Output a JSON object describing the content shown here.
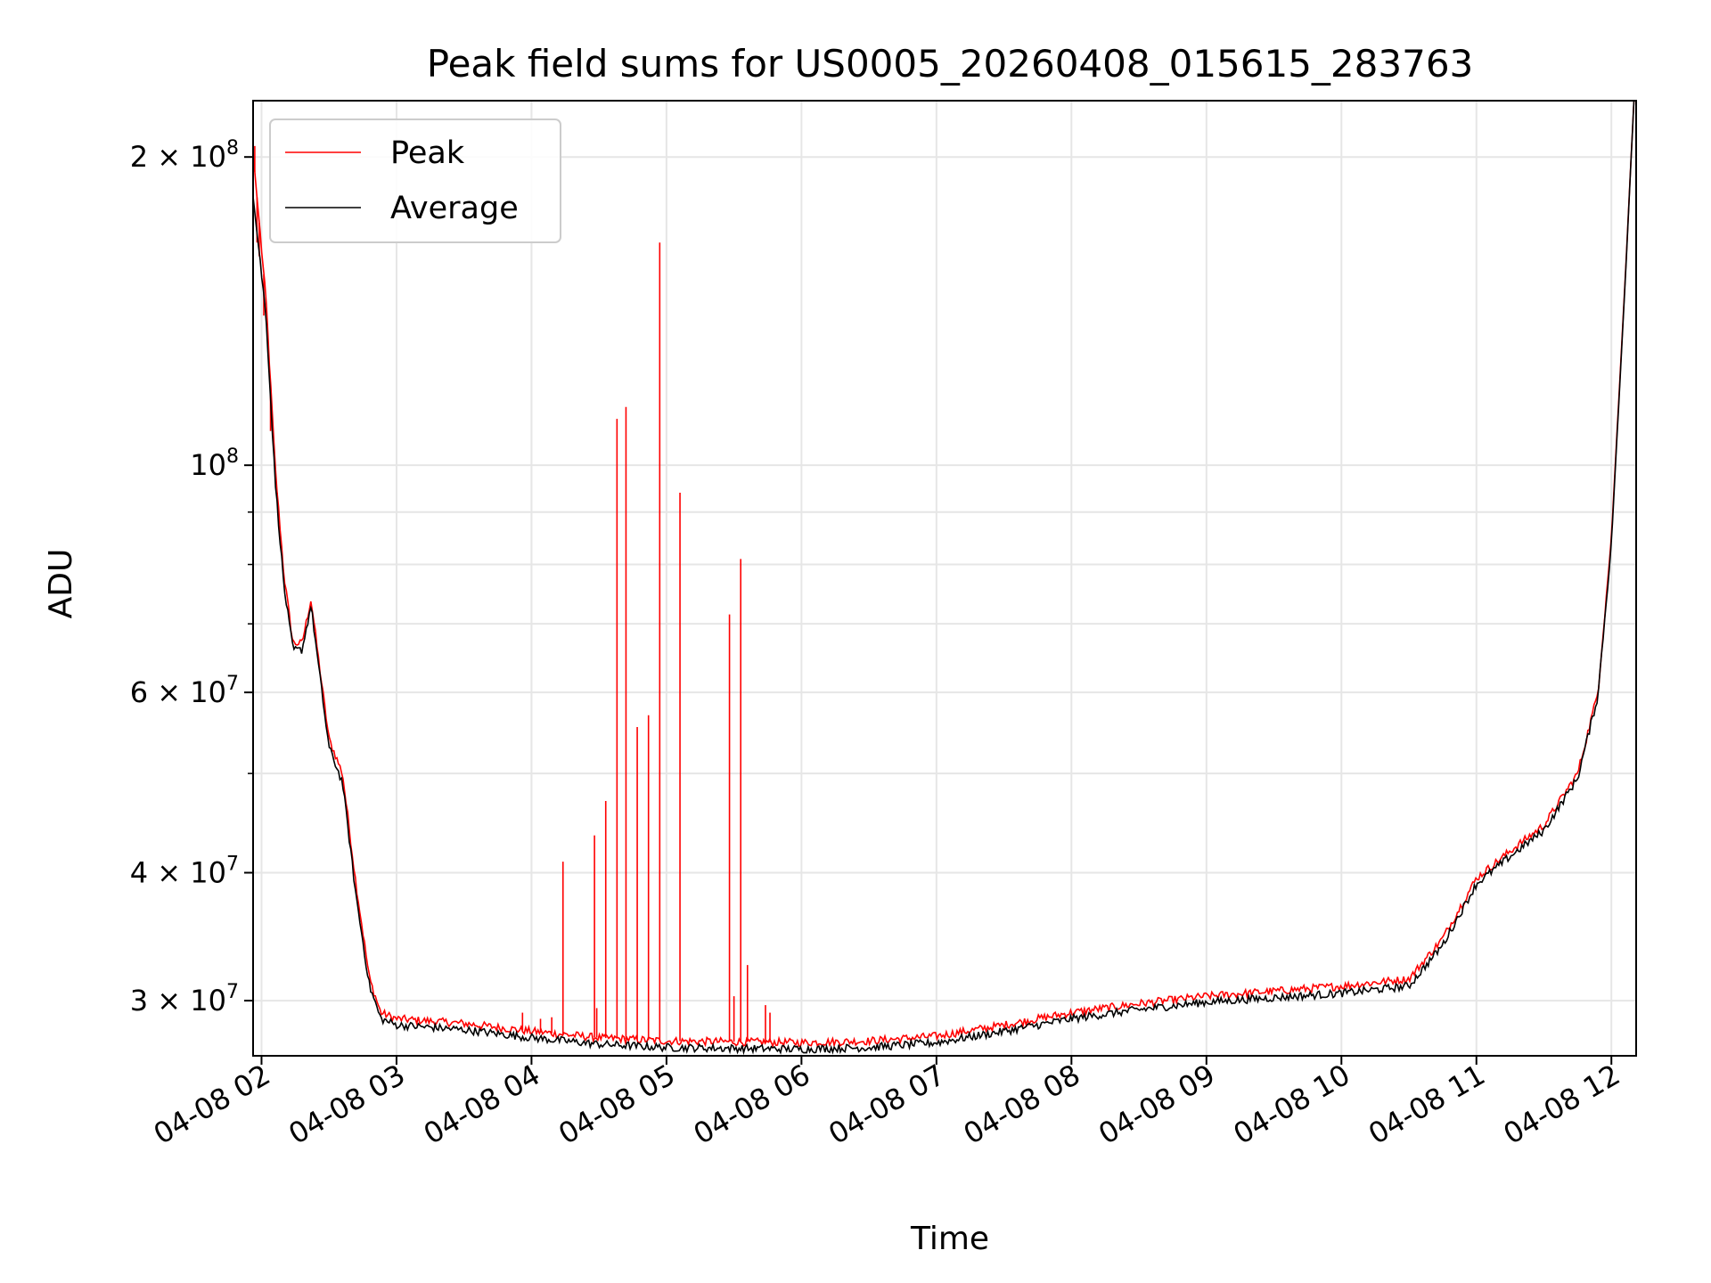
{
  "chart_data": {
    "type": "line",
    "title": "Peak field sums for US0005_20260408_015615_283763",
    "xlabel": "Time",
    "ylabel": "ADU",
    "y_scale": "log",
    "ylim": [
      26500000,
      227000000
    ],
    "xlim": [
      "2026-04-08T01:56:15",
      "2026-04-08T12:11:00"
    ],
    "grid": true,
    "legend_position": "top-left",
    "x_ticks": [
      {
        "value": "2026-04-08T02:00",
        "label": "04-08 02"
      },
      {
        "value": "2026-04-08T03:00",
        "label": "04-08 03"
      },
      {
        "value": "2026-04-08T04:00",
        "label": "04-08 04"
      },
      {
        "value": "2026-04-08T05:00",
        "label": "04-08 05"
      },
      {
        "value": "2026-04-08T06:00",
        "label": "04-08 06"
      },
      {
        "value": "2026-04-08T07:00",
        "label": "04-08 07"
      },
      {
        "value": "2026-04-08T08:00",
        "label": "04-08 08"
      },
      {
        "value": "2026-04-08T09:00",
        "label": "04-08 09"
      },
      {
        "value": "2026-04-08T10:00",
        "label": "04-08 10"
      },
      {
        "value": "2026-04-08T11:00",
        "label": "04-08 11"
      },
      {
        "value": "2026-04-08T12:00",
        "label": "04-08 12"
      }
    ],
    "y_ticks": [
      {
        "value": 200000000,
        "mantissa": "2 × 10",
        "exp": "8"
      },
      {
        "value": 100000000,
        "mantissa": "10",
        "exp": "8"
      },
      {
        "value": 60000000,
        "mantissa": "6 × 10",
        "exp": "7"
      },
      {
        "value": 40000000,
        "mantissa": "4 × 10",
        "exp": "7"
      },
      {
        "value": 30000000,
        "mantissa": "3 × 10",
        "exp": "7"
      }
    ],
    "y_minor_ticks": [
      50000000,
      70000000,
      80000000,
      90000000
    ],
    "series": [
      {
        "name": "Peak",
        "color": "#ff0000",
        "x": [
          "2026-04-08T01:56",
          "2026-04-08T02:02",
          "2026-04-08T02:06",
          "2026-04-08T02:10",
          "2026-04-08T02:14",
          "2026-04-08T02:18",
          "2026-04-08T02:22",
          "2026-04-08T02:26",
          "2026-04-08T02:30",
          "2026-04-08T02:36",
          "2026-04-08T02:42",
          "2026-04-08T02:48",
          "2026-04-08T02:53",
          "2026-04-08T03:00",
          "2026-04-08T03:30",
          "2026-04-08T04:00",
          "2026-04-08T04:30",
          "2026-04-08T05:00",
          "2026-04-08T06:00",
          "2026-04-08T06:30",
          "2026-04-08T07:00",
          "2026-04-08T07:30",
          "2026-04-08T08:00",
          "2026-04-08T08:30",
          "2026-04-08T09:00",
          "2026-04-08T10:00",
          "2026-04-08T10:30",
          "2026-04-08T10:45",
          "2026-04-08T11:00",
          "2026-04-08T11:15",
          "2026-04-08T11:30",
          "2026-04-08T11:45",
          "2026-04-08T11:54",
          "2026-04-08T12:00",
          "2026-04-08T12:06",
          "2026-04-08T12:10"
        ],
        "y": [
          205000000,
          145000000,
          100000000,
          78000000,
          67000000,
          67000000,
          74000000,
          63000000,
          54000000,
          50000000,
          39000000,
          31500000,
          29200000,
          28800000,
          28500000,
          28000000,
          27600000,
          27400000,
          27300000,
          27400000,
          27700000,
          28400000,
          29200000,
          29800000,
          30300000,
          31000000,
          31500000,
          34500000,
          39500000,
          42000000,
          44500000,
          50000000,
          60000000,
          85000000,
          150000000,
          227000000
        ],
        "spikes": [
          {
            "x": "2026-04-08T01:57",
            "y": 205000000
          },
          {
            "x": "2026-04-08T01:58",
            "y": 165000000
          },
          {
            "x": "2026-04-08T01:59",
            "y": 160000000
          },
          {
            "x": "2026-04-08T02:01",
            "y": 140000000
          },
          {
            "x": "2026-04-08T02:04",
            "y": 108000000
          },
          {
            "x": "2026-04-08T02:07",
            "y": 92000000
          },
          {
            "x": "2026-04-08T03:56",
            "y": 29200000
          },
          {
            "x": "2026-04-08T04:04",
            "y": 28800000
          },
          {
            "x": "2026-04-08T04:09",
            "y": 28900000
          },
          {
            "x": "2026-04-08T04:14",
            "y": 41000000
          },
          {
            "x": "2026-04-08T04:28",
            "y": 43500000
          },
          {
            "x": "2026-04-08T04:29",
            "y": 29500000
          },
          {
            "x": "2026-04-08T04:33",
            "y": 47000000
          },
          {
            "x": "2026-04-08T04:38",
            "y": 111000000
          },
          {
            "x": "2026-04-08T04:42",
            "y": 114000000
          },
          {
            "x": "2026-04-08T04:47",
            "y": 55500000
          },
          {
            "x": "2026-04-08T04:52",
            "y": 57000000
          },
          {
            "x": "2026-04-08T04:57",
            "y": 165000000
          },
          {
            "x": "2026-04-08T05:06",
            "y": 94000000
          },
          {
            "x": "2026-04-08T05:28",
            "y": 71500000
          },
          {
            "x": "2026-04-08T05:30",
            "y": 30300000
          },
          {
            "x": "2026-04-08T05:33",
            "y": 81000000
          },
          {
            "x": "2026-04-08T05:36",
            "y": 32500000
          },
          {
            "x": "2026-04-08T05:44",
            "y": 29700000
          },
          {
            "x": "2026-04-08T05:46",
            "y": 29200000
          }
        ]
      },
      {
        "name": "Average",
        "color": "#000000",
        "x": [
          "2026-04-08T01:56",
          "2026-04-08T02:02",
          "2026-04-08T02:06",
          "2026-04-08T02:10",
          "2026-04-08T02:14",
          "2026-04-08T02:18",
          "2026-04-08T02:22",
          "2026-04-08T02:26",
          "2026-04-08T02:30",
          "2026-04-08T02:36",
          "2026-04-08T02:42",
          "2026-04-08T02:48",
          "2026-04-08T02:53",
          "2026-04-08T03:00",
          "2026-04-08T03:30",
          "2026-04-08T04:00",
          "2026-04-08T04:30",
          "2026-04-08T05:00",
          "2026-04-08T06:00",
          "2026-04-08T06:30",
          "2026-04-08T07:00",
          "2026-04-08T07:30",
          "2026-04-08T08:00",
          "2026-04-08T08:30",
          "2026-04-08T09:00",
          "2026-04-08T10:00",
          "2026-04-08T10:30",
          "2026-04-08T10:45",
          "2026-04-08T11:00",
          "2026-04-08T11:15",
          "2026-04-08T11:30",
          "2026-04-08T11:45",
          "2026-04-08T11:54",
          "2026-04-08T12:00",
          "2026-04-08T12:06",
          "2026-04-08T12:10"
        ],
        "y": [
          185000000,
          140000000,
          97000000,
          76000000,
          66000000,
          66000000,
          73000000,
          62000000,
          53000000,
          49000000,
          38000000,
          31000000,
          28800000,
          28400000,
          28100000,
          27600000,
          27200000,
          27000000,
          26900000,
          27000000,
          27300000,
          28000000,
          28800000,
          29400000,
          29900000,
          30500000,
          31000000,
          34000000,
          39000000,
          41500000,
          44000000,
          49500000,
          59500000,
          84000000,
          149000000,
          227000000
        ]
      }
    ]
  }
}
